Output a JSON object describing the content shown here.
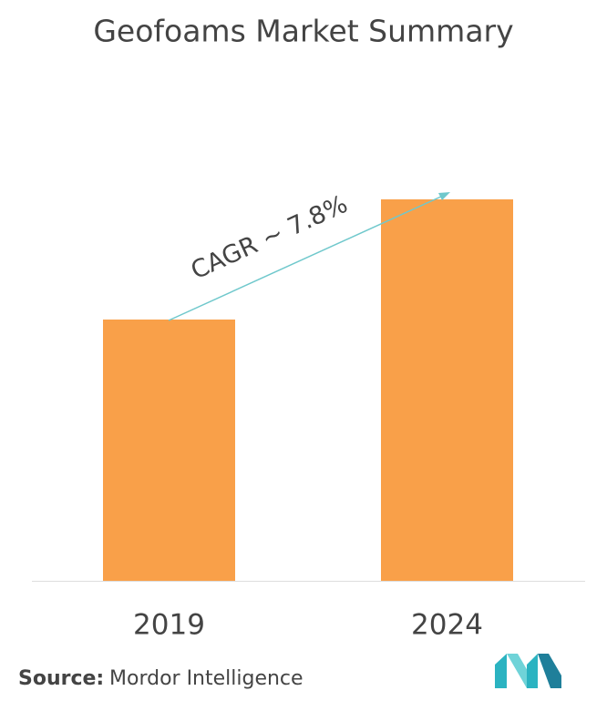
{
  "chart_data": {
    "type": "bar",
    "title": "Geofoams Market Summary",
    "categories": [
      "2019",
      "2024"
    ],
    "values": [
      100,
      146
    ],
    "color": "#f9a049",
    "ylim": [
      0,
      150
    ],
    "annotation": "CAGR ~ 7.8%"
  },
  "source": {
    "label": "Source:",
    "text": "Mordor Intelligence"
  }
}
